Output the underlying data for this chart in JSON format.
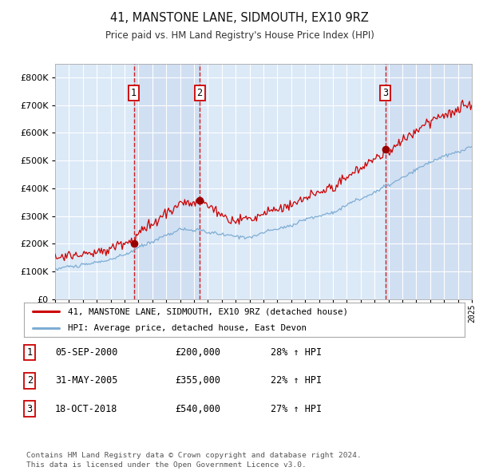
{
  "title": "41, MANSTONE LANE, SIDMOUTH, EX10 9RZ",
  "subtitle": "Price paid vs. HM Land Registry's House Price Index (HPI)",
  "background_color": "#ffffff",
  "plot_bg_color": "#dce9f7",
  "grid_color": "#ffffff",
  "hpi_line_color": "#7dadd4",
  "price_line_color": "#cc0000",
  "sale_marker_color": "#990000",
  "vline_color": "#cc0000",
  "shade_color": "#c8d8ee",
  "ylim": [
    0,
    850000
  ],
  "yticks": [
    0,
    100000,
    200000,
    300000,
    400000,
    500000,
    600000,
    700000,
    800000
  ],
  "ytick_labels": [
    "£0",
    "£100K",
    "£200K",
    "£300K",
    "£400K",
    "£500K",
    "£600K",
    "£700K",
    "£800K"
  ],
  "x_start_year": 1995,
  "x_end_year": 2025,
  "sale_dates": [
    2000.67,
    2005.41,
    2018.79
  ],
  "sale_prices": [
    200000,
    355000,
    540000
  ],
  "sale_labels": [
    "1",
    "2",
    "3"
  ],
  "sale_table": [
    {
      "num": "1",
      "date": "05-SEP-2000",
      "price": "£200,000",
      "change": "28% ↑ HPI"
    },
    {
      "num": "2",
      "date": "31-MAY-2005",
      "price": "£355,000",
      "change": "22% ↑ HPI"
    },
    {
      "num": "3",
      "date": "18-OCT-2018",
      "price": "£540,000",
      "change": "27% ↑ HPI"
    }
  ],
  "legend_line1": "41, MANSTONE LANE, SIDMOUTH, EX10 9RZ (detached house)",
  "legend_line2": "HPI: Average price, detached house, East Devon",
  "footer": "Contains HM Land Registry data © Crown copyright and database right 2024.\nThis data is licensed under the Open Government Licence v3.0."
}
